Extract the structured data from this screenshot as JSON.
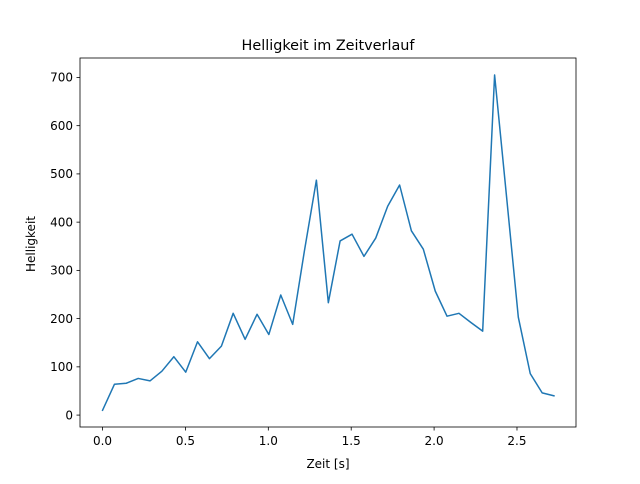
{
  "chart_data": {
    "type": "line",
    "title": "Helligkeit im Zeitverlauf",
    "xlabel": "Zeit [s]",
    "ylabel": "Helligkeit",
    "xlim": [
      -0.136,
      2.856
    ],
    "ylim": [
      -24.7,
      740.3
    ],
    "grid": false,
    "legend": "none",
    "xticks": [
      0.0,
      0.5,
      1.0,
      1.5,
      2.0,
      2.5
    ],
    "xtick_labels": [
      "0.0",
      "0.5",
      "1.0",
      "1.5",
      "2.0",
      "2.5"
    ],
    "yticks": [
      0,
      100,
      200,
      300,
      400,
      500,
      600,
      700
    ],
    "ytick_labels": [
      "0",
      "100",
      "200",
      "300",
      "400",
      "500",
      "600",
      "700"
    ],
    "series": [
      {
        "color": "#1f77b4",
        "x": [
          0.0,
          0.072,
          0.143,
          0.215,
          0.287,
          0.358,
          0.43,
          0.502,
          0.573,
          0.645,
          0.717,
          0.788,
          0.86,
          0.932,
          1.003,
          1.075,
          1.147,
          1.218,
          1.29,
          1.362,
          1.433,
          1.505,
          1.577,
          1.648,
          1.72,
          1.792,
          1.863,
          1.935,
          2.007,
          2.078,
          2.15,
          2.222,
          2.293,
          2.365,
          2.437,
          2.508,
          2.58,
          2.652,
          2.723
        ],
        "y": [
          10,
          64,
          66,
          76,
          71,
          91,
          121,
          89,
          152,
          117,
          143,
          211,
          157,
          209,
          167,
          249,
          188,
          341,
          487,
          233,
          361,
          375,
          329,
          367,
          433,
          477,
          382,
          344,
          257,
          205,
          211,
          192,
          174,
          705,
          453,
          203,
          86,
          46,
          40
        ]
      }
    ]
  }
}
